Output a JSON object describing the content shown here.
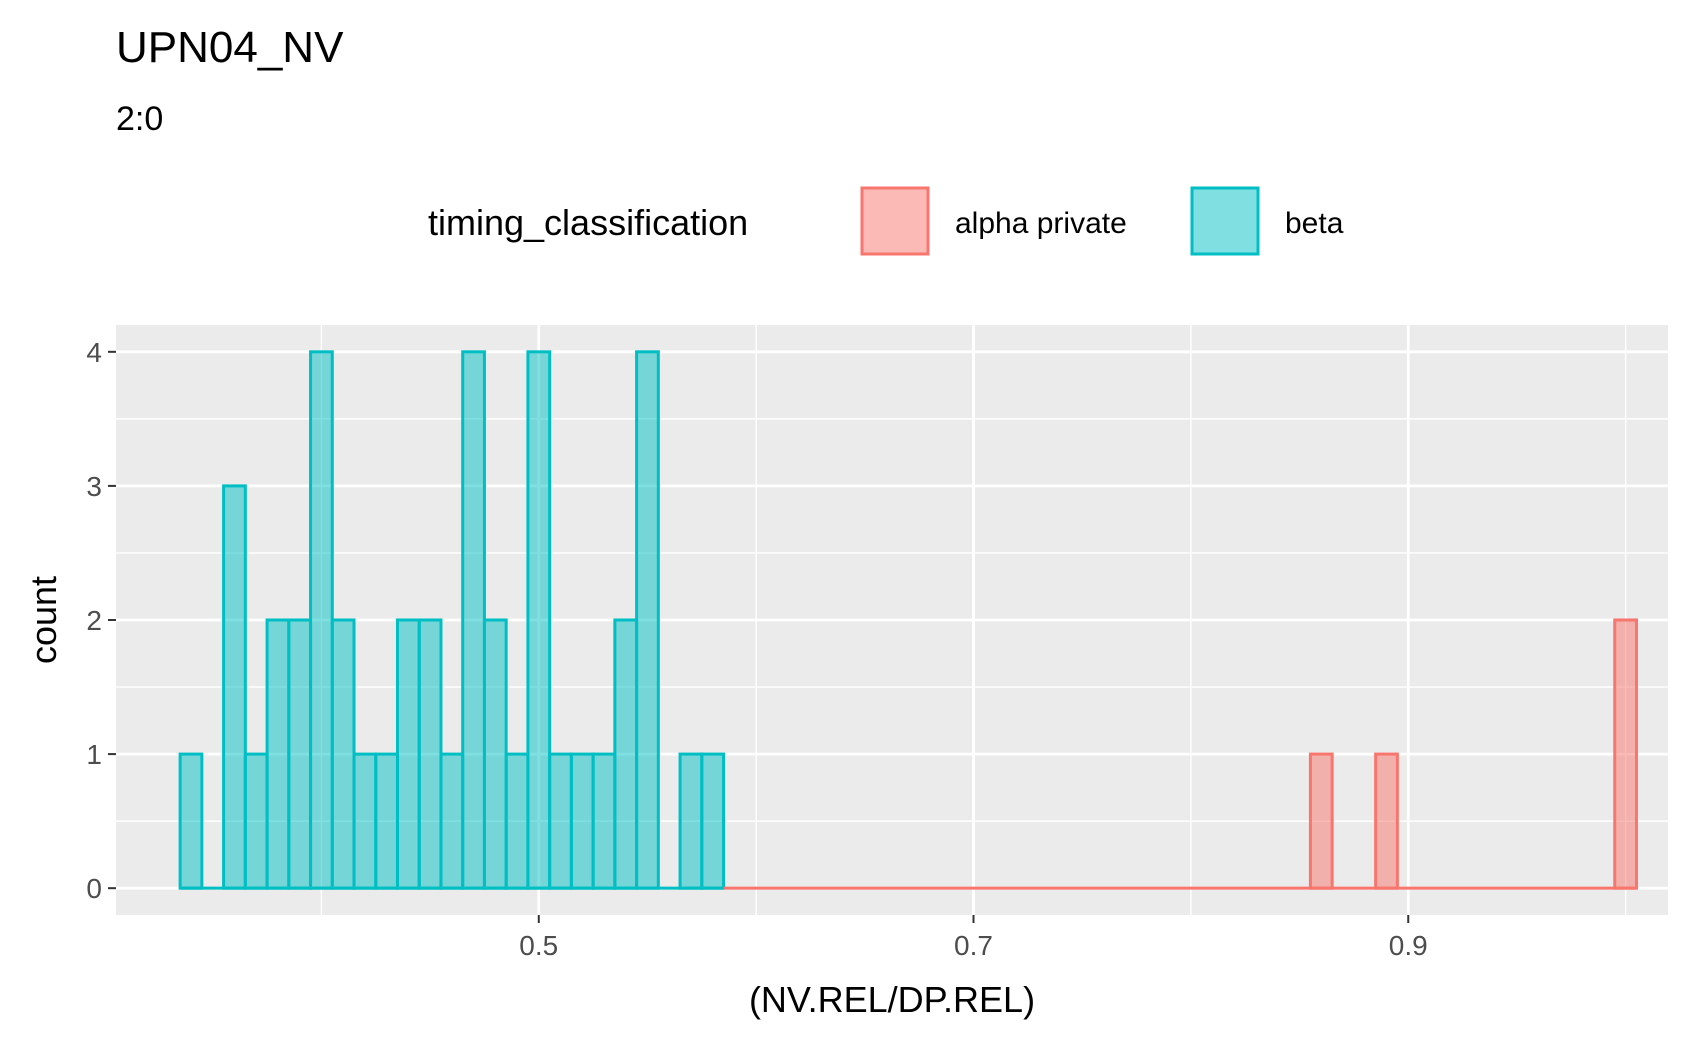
{
  "chart_data": {
    "type": "histogram",
    "title": "UPN04_NV",
    "subtitle": "2:0",
    "xlabel": "(NV.REL/DP.REL)",
    "ylabel": "count",
    "xlim": [
      0.3055,
      1.0195
    ],
    "ylim": [
      -0.2,
      4.2
    ],
    "x_ticks": [
      0.5,
      0.7,
      0.9
    ],
    "x_tick_labels": [
      "0.5",
      "0.7",
      "0.9"
    ],
    "y_ticks": [
      0,
      1,
      2,
      3,
      4
    ],
    "y_tick_labels": [
      "0",
      "1",
      "2",
      "3",
      "4"
    ],
    "grid": true,
    "legend": {
      "title": "timing_classification",
      "position": "top",
      "entries": [
        {
          "label": "alpha private",
          "fill": "#F8766D",
          "fill_alpha": 0.5,
          "stroke": "#F8766D"
        },
        {
          "label": "beta",
          "fill": "#00BFC4",
          "fill_alpha": 0.5,
          "stroke": "#00BFC4"
        }
      ]
    },
    "bin_width": 0.01,
    "x_start": 0.335,
    "series": [
      {
        "name": "beta",
        "color": "#00BFC4",
        "bins": [
          {
            "x": 0.34,
            "count": 1
          },
          {
            "x": 0.36,
            "count": 3
          },
          {
            "x": 0.37,
            "count": 1
          },
          {
            "x": 0.38,
            "count": 2
          },
          {
            "x": 0.39,
            "count": 2
          },
          {
            "x": 0.4,
            "count": 4
          },
          {
            "x": 0.41,
            "count": 2
          },
          {
            "x": 0.42,
            "count": 1
          },
          {
            "x": 0.43,
            "count": 1
          },
          {
            "x": 0.44,
            "count": 2
          },
          {
            "x": 0.45,
            "count": 2
          },
          {
            "x": 0.46,
            "count": 1
          },
          {
            "x": 0.47,
            "count": 4
          },
          {
            "x": 0.48,
            "count": 2
          },
          {
            "x": 0.49,
            "count": 1
          },
          {
            "x": 0.5,
            "count": 4
          },
          {
            "x": 0.51,
            "count": 1
          },
          {
            "x": 0.52,
            "count": 1
          },
          {
            "x": 0.53,
            "count": 1
          },
          {
            "x": 0.54,
            "count": 2
          },
          {
            "x": 0.55,
            "count": 4
          },
          {
            "x": 0.57,
            "count": 1
          },
          {
            "x": 0.58,
            "count": 1
          }
        ],
        "baseline_range": [
          0.335,
          0.585
        ]
      },
      {
        "name": "alpha private",
        "color": "#F8766D",
        "bins": [
          {
            "x": 0.86,
            "count": 1
          },
          {
            "x": 0.89,
            "count": 1
          },
          {
            "x": 1.0,
            "count": 2
          }
        ],
        "baseline_range": [
          0.585,
          1.005
        ]
      }
    ]
  }
}
